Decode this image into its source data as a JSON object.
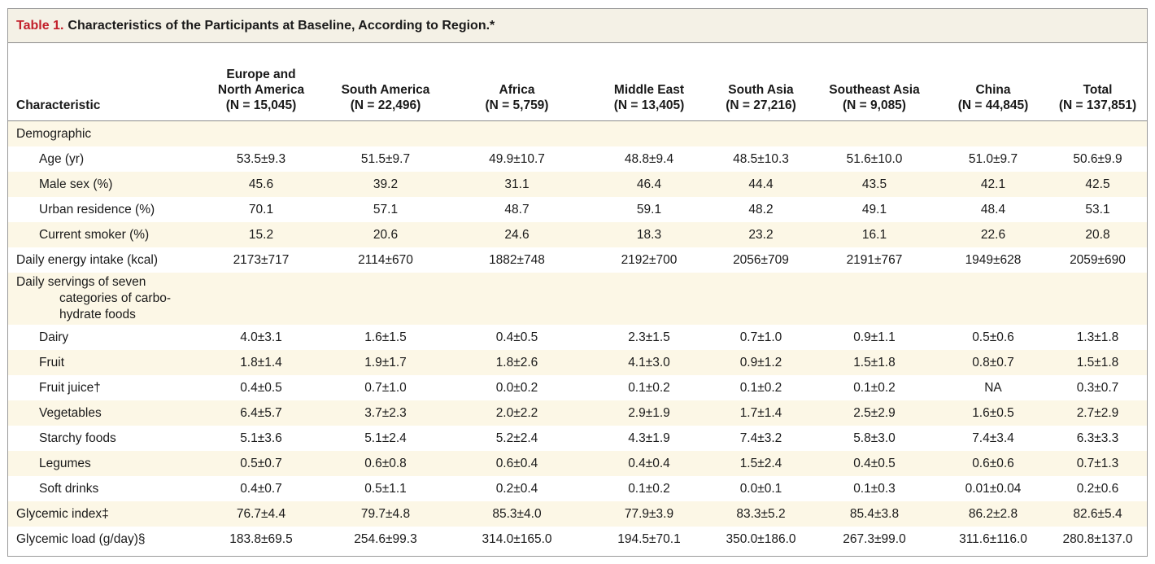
{
  "table": {
    "label": "Table 1.",
    "title": "Characteristics of the Participants at Baseline, According to Region.*",
    "header": {
      "characteristic": "Characteristic",
      "columns": [
        {
          "name": "Europe and\nNorth America",
          "n": "(N = 15,045)"
        },
        {
          "name": "South America",
          "n": "(N = 22,496)"
        },
        {
          "name": "Africa",
          "n": "(N = 5,759)"
        },
        {
          "name": "Middle East",
          "n": "(N = 13,405)"
        },
        {
          "name": "South Asia",
          "n": "(N = 27,216)"
        },
        {
          "name": "Southeast Asia",
          "n": "(N = 9,085)"
        },
        {
          "name": "China",
          "n": "(N = 44,845)"
        },
        {
          "name": "Total",
          "n": "(N = 137,851)"
        }
      ]
    },
    "rows": [
      {
        "label": "Demographic",
        "values": [
          "",
          "",
          "",
          "",
          "",
          "",
          "",
          ""
        ]
      },
      {
        "label": "Age (yr)",
        "values": [
          "53.5±9.3",
          "51.5±9.7",
          "49.9±10.7",
          "48.8±9.4",
          "48.5±10.3",
          "51.6±10.0",
          "51.0±9.7",
          "50.6±9.9"
        ]
      },
      {
        "label": "Male sex (%)",
        "values": [
          "45.6",
          "39.2",
          "31.1",
          "46.4",
          "44.4",
          "43.5",
          "42.1",
          "42.5"
        ]
      },
      {
        "label": "Urban residence (%)",
        "values": [
          "70.1",
          "57.1",
          "48.7",
          "59.1",
          "48.2",
          "49.1",
          "48.4",
          "53.1"
        ]
      },
      {
        "label": "Current smoker (%)",
        "values": [
          "15.2",
          "20.6",
          "24.6",
          "18.3",
          "23.2",
          "16.1",
          "22.6",
          "20.8"
        ]
      },
      {
        "label": "Daily energy intake (kcal)",
        "values": [
          "2173±717",
          "2114±670",
          "1882±748",
          "2192±700",
          "2056±709",
          "2191±767",
          "1949±628",
          "2059±690"
        ]
      },
      {
        "label_first": "Daily servings of seven",
        "label_rest_1": "categories of carbo-",
        "label_rest_2": "hydrate foods",
        "values": [
          "",
          "",
          "",
          "",
          "",
          "",
          "",
          ""
        ]
      },
      {
        "label": "Dairy",
        "values": [
          "4.0±3.1",
          "1.6±1.5",
          "0.4±0.5",
          "2.3±1.5",
          "0.7±1.0",
          "0.9±1.1",
          "0.5±0.6",
          "1.3±1.8"
        ]
      },
      {
        "label": "Fruit",
        "values": [
          "1.8±1.4",
          "1.9±1.7",
          "1.8±2.6",
          "4.1±3.0",
          "0.9±1.2",
          "1.5±1.8",
          "0.8±0.7",
          "1.5±1.8"
        ]
      },
      {
        "label": "Fruit juice†",
        "values": [
          "0.4±0.5",
          "0.7±1.0",
          "0.0±0.2",
          "0.1±0.2",
          "0.1±0.2",
          "0.1±0.2",
          "NA",
          "0.3±0.7"
        ]
      },
      {
        "label": "Vegetables",
        "values": [
          "6.4±5.7",
          "3.7±2.3",
          "2.0±2.2",
          "2.9±1.9",
          "1.7±1.4",
          "2.5±2.9",
          "1.6±0.5",
          "2.7±2.9"
        ]
      },
      {
        "label": "Starchy foods",
        "values": [
          "5.1±3.6",
          "5.1±2.4",
          "5.2±2.4",
          "4.3±1.9",
          "7.4±3.2",
          "5.8±3.0",
          "7.4±3.4",
          "6.3±3.3"
        ]
      },
      {
        "label": "Legumes",
        "values": [
          "0.5±0.7",
          "0.6±0.8",
          "0.6±0.4",
          "0.4±0.4",
          "1.5±2.4",
          "0.4±0.5",
          "0.6±0.6",
          "0.7±1.3"
        ]
      },
      {
        "label": "Soft drinks",
        "values": [
          "0.4±0.7",
          "0.5±1.1",
          "0.2±0.4",
          "0.1±0.2",
          "0.0±0.1",
          "0.1±0.3",
          "0.01±0.04",
          "0.2±0.6"
        ]
      },
      {
        "label": "Glycemic index‡",
        "values": [
          "76.7±4.4",
          "79.7±4.8",
          "85.3±4.0",
          "77.9±3.9",
          "83.3±5.2",
          "85.4±3.8",
          "86.2±2.8",
          "82.6±5.4"
        ]
      },
      {
        "label": "Glycemic load (g/day)§",
        "values": [
          "183.8±69.5",
          "254.6±99.3",
          "314.0±165.0",
          "194.5±70.1",
          "350.0±186.0",
          "267.3±99.0",
          "311.6±116.0",
          "280.8±137.0"
        ]
      }
    ]
  },
  "colors": {
    "label_red": "#c21f2a",
    "title_bg": "#f4f1e6",
    "shade": "#fcf7e6"
  }
}
